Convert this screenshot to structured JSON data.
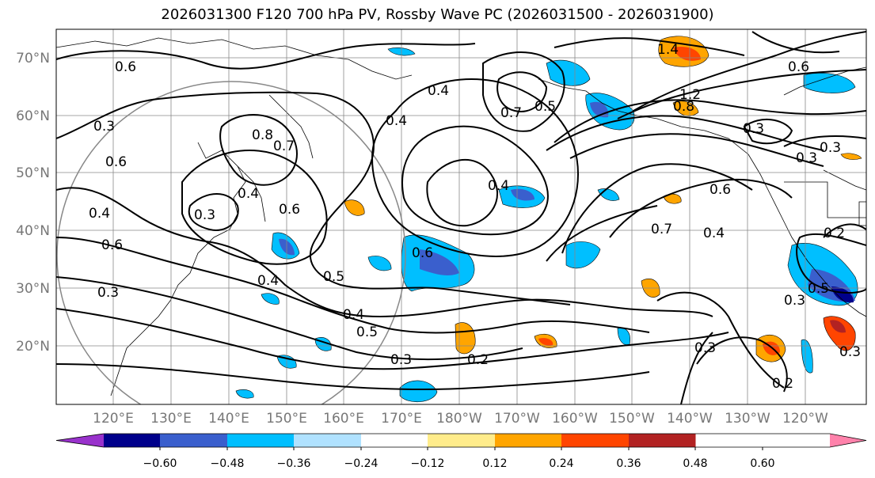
{
  "title": "2026031300 F120 700 hPa PV, Rossby Wave PC (2026031500 - 2026031900)",
  "lat_labels": [
    "70°N",
    "60°N",
    "50°N",
    "40°N",
    "30°N",
    "20°N"
  ],
  "lon_labels": [
    "120°E",
    "130°E",
    "140°E",
    "150°E",
    "160°E",
    "170°E",
    "180°W",
    "170°W",
    "160°W",
    "150°W",
    "140°W",
    "130°W",
    "120°W"
  ],
  "colorbar": {
    "colors": [
      "#9932cc",
      "#00008b",
      "#3a5fcd",
      "#00bfff",
      "#b0e2ff",
      "#ffffff",
      "#ffec8b",
      "#ffa500",
      "#ff4500",
      "#b22222",
      "#ff82ab"
    ],
    "labels": [
      "−0.60",
      "−0.48",
      "−0.36",
      "−0.24",
      "−0.12",
      "0.12",
      "0.24",
      "0.36",
      "0.48",
      "0.60"
    ]
  },
  "contour_labels": [
    "0.6",
    "0.7",
    "0.6",
    "0.3",
    "0.4",
    "0.5",
    "0.4",
    "0.5",
    "0.3",
    "0.2",
    "0.3",
    "0.6",
    "0.4",
    "0.4",
    "0.7",
    "0.6",
    "0.4",
    "0.3",
    "0.3",
    "0.2",
    "0.3",
    "0.2",
    "1.4",
    "1.2",
    "0.3",
    "0.3",
    "0.8",
    "0.6",
    "0.4",
    "0.6",
    "0.8",
    "0.7",
    "0.5",
    "0.4",
    "0.3",
    "0.4",
    "0.5",
    "0.6",
    "0.3"
  ]
}
